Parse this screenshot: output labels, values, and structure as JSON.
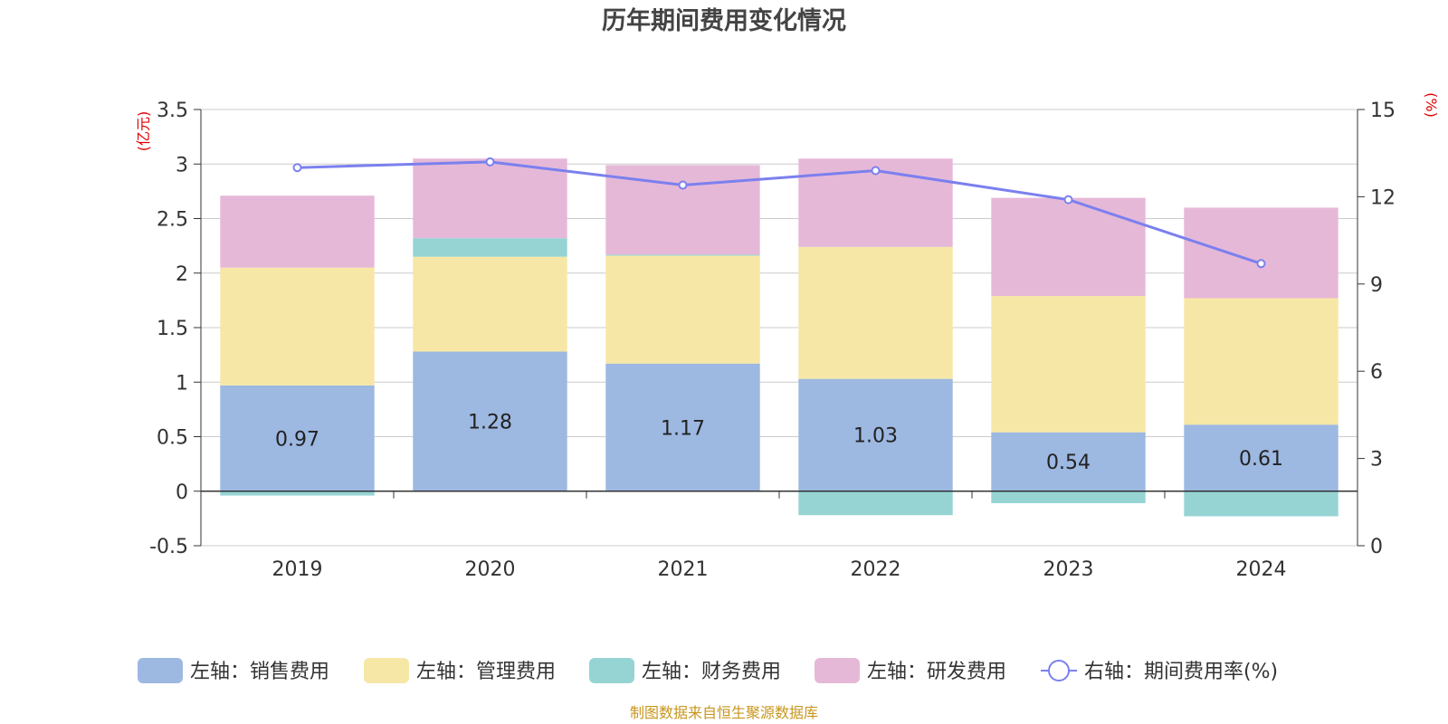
{
  "chart_data": {
    "type": "bar",
    "stacked": true,
    "title": "历年期间费用变化情况",
    "categories": [
      "2019",
      "2020",
      "2021",
      "2022",
      "2023",
      "2024"
    ],
    "left_axis": {
      "unit": "(亿元)",
      "ylim": [
        -0.5,
        3.5
      ],
      "ticks": [
        "3.5",
        "3",
        "2.5",
        "2",
        "1.5",
        "1",
        "0.5",
        "0",
        "-0.5"
      ]
    },
    "right_axis": {
      "unit": "(%)",
      "ylim": [
        0,
        15
      ],
      "ticks": [
        "15",
        "12",
        "9",
        "6",
        "3",
        "0"
      ]
    },
    "series": [
      {
        "name": "左轴：销售费用",
        "type": "bar",
        "axis": "left",
        "color": "#9db8e1",
        "values": [
          0.97,
          1.28,
          1.17,
          1.03,
          0.54,
          0.61
        ]
      },
      {
        "name": "左轴：管理费用",
        "type": "bar",
        "axis": "left",
        "color": "#f7e7a6",
        "values": [
          1.08,
          0.87,
          0.99,
          1.21,
          1.25,
          1.16
        ]
      },
      {
        "name": "左轴：财务费用",
        "type": "bar",
        "axis": "left",
        "color": "#96d4d4",
        "values": [
          -0.04,
          0.17,
          0.01,
          -0.22,
          -0.11,
          -0.23
        ]
      },
      {
        "name": "左轴：研发费用",
        "type": "bar",
        "axis": "left",
        "color": "#e6b8d8",
        "values": [
          0.66,
          0.73,
          0.82,
          0.81,
          0.9,
          0.83
        ]
      },
      {
        "name": "右轴：期间费用率(%)",
        "type": "line",
        "axis": "right",
        "color": "#7b80ee",
        "values": [
          13.0,
          13.2,
          12.4,
          12.9,
          11.9,
          9.7
        ]
      }
    ],
    "bar_labels": [
      "0.97",
      "1.28",
      "1.17",
      "1.03",
      "0.54",
      "0.61"
    ],
    "grid": true,
    "legend_position": "bottom"
  },
  "source": "制图数据来自恒生聚源数据库"
}
